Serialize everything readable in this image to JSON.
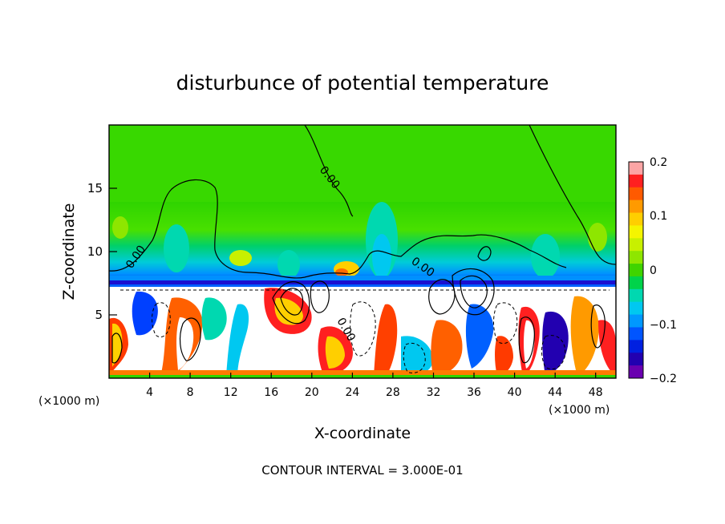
{
  "chart_data": {
    "type": "heatmap",
    "title": "disturbunce of potential temperature",
    "xlabel": "X-coordinate",
    "ylabel": "Z-coordinate",
    "x_unit": "(×1000 m)",
    "x_unit_right": "(×1000 m)",
    "xlim": [
      0,
      50
    ],
    "ylim": [
      0,
      20
    ],
    "x_ticks": [
      "4",
      "8",
      "12",
      "16",
      "20",
      "24",
      "28",
      "32",
      "36",
      "40",
      "44",
      "48"
    ],
    "y_ticks": [
      "5",
      "10",
      "15"
    ],
    "footer": "CONTOUR INTERVAL = 3.000E-01",
    "contour_labels": [
      "0.00",
      "0.00",
      "0.00",
      "0.00"
    ],
    "colorbar": {
      "range": [
        -0.2,
        0.2
      ],
      "tick_labels": [
        "0.2",
        "0.1",
        "0",
        "−0.1",
        "−0.2"
      ],
      "colors": [
        "#fca5a5",
        "#ff2020",
        "#ff5a00",
        "#ff9a00",
        "#ffcf00",
        "#f5f500",
        "#c8f000",
        "#8ee600",
        "#3fd400",
        "#00d34a",
        "#00d8b0",
        "#00c8f0",
        "#0098ff",
        "#0055ff",
        "#0020e0",
        "#2200b0",
        "#6a00b0"
      ]
    },
    "grid": false
  }
}
